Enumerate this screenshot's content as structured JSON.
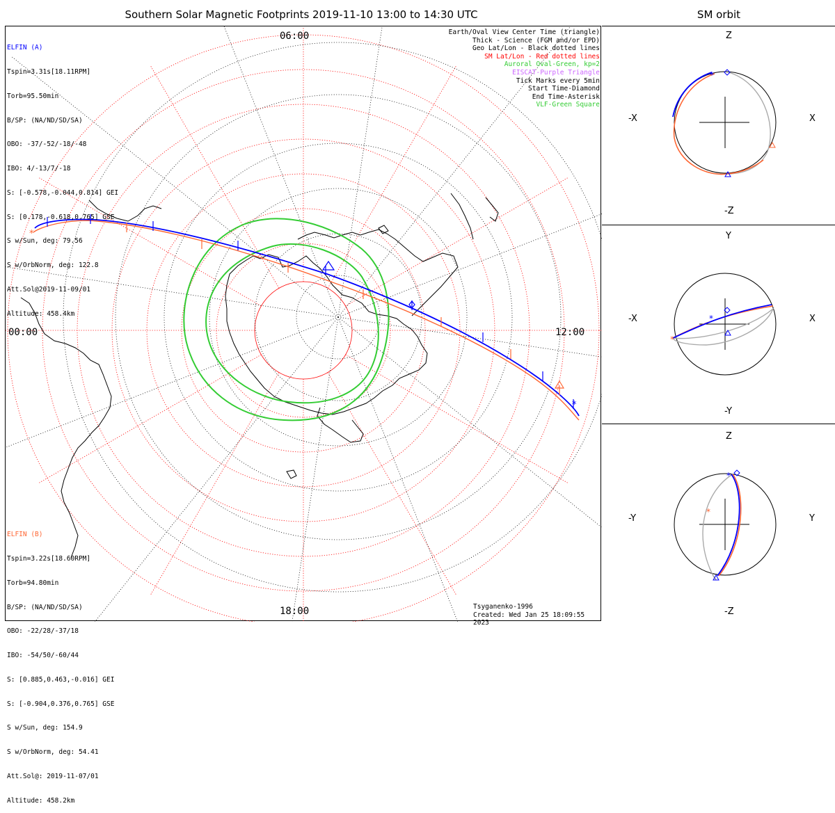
{
  "header": {
    "title": "Southern Solar Magnetic Footprints 2019-11-10 13:00 to 14:30 UTC",
    "sm_title": "SM orbit"
  },
  "mlt_labels": {
    "top": "06:00",
    "left": "00:00",
    "right": "12:00",
    "bottom": "18:00"
  },
  "elfin_a": {
    "color": "#0000ff",
    "lines": [
      "ELFIN (A)",
      "Tspin=3.31s[18.11RPM]",
      "Torb=95.50min",
      "B/SP: (NA/ND/SD/SA)",
      "OBO: -37/-52/-18/-48",
      "IBO: 4/-13/7/-18",
      "S: [-0.578,-0.044,0.814] GEI",
      "S: [0.178,-0.618,0.765] GSE",
      "S w/Sun, deg: 79.56",
      "S w/OrbNorm, deg: 122.8",
      "Att.Sol@2019-11-09/01",
      "Altitude: 458.4km"
    ]
  },
  "elfin_b": {
    "color": "#ff6633",
    "lines": [
      "ELFIN (B)",
      "Tspin=3.22s[18.60RPM]",
      "Torb=94.80min",
      "B/SP: (NA/ND/SD/SA)",
      "OBO: -22/28/-37/18",
      "IBO: -54/50/-60/44",
      "S: [0.885,0.463,-0.016] GEI",
      "S: [-0.904,0.376,0.765] GSE",
      "S w/Sun, deg: 154.9",
      "S w/OrbNorm, deg: 54.41",
      "Att.Sol@: 2019-11-07/01",
      "Altitude: 458.2km"
    ]
  },
  "legend": [
    {
      "text": "Earth/Oval View Center Time (triangle)",
      "color": "#000000"
    },
    {
      "text": "Thick - Science (FGM and/or EPD)",
      "color": "#000000"
    },
    {
      "text": "Geo Lat/Lon - Black dotted lines",
      "color": "#000000"
    },
    {
      "text": "SM Lat/Lon - Red dotted lines",
      "color": "#ff0000"
    },
    {
      "text": "Auroral Oval-Green, kp=2",
      "color": "#33cc33"
    },
    {
      "text": "EISCAT-Purple Triangle",
      "color": "#cc66ff"
    },
    {
      "text": "Tick Marks every 5min",
      "color": "#000000"
    },
    {
      "text": "Start Time-Diamond",
      "color": "#000000"
    },
    {
      "text": "End Time-Asterisk",
      "color": "#000000"
    },
    {
      "text": "VLF-Green Square",
      "color": "#33cc33"
    }
  ],
  "credit": {
    "line1": "Tsyganenko-1996",
    "line2": "Created: Wed Jan 25 18:09:55 2023"
  },
  "orbit_panels": [
    {
      "left": "-X",
      "right": "X",
      "top": "Z",
      "bottom": "-Z"
    },
    {
      "left": "-X",
      "right": "X",
      "top": "Y",
      "bottom": "-Y"
    },
    {
      "left": "-Y",
      "right": "Y",
      "top": "Z",
      "bottom": "-Z"
    }
  ],
  "colors": {
    "probe_a": "#0000ff",
    "probe_b": "#ff6633",
    "sm_grid": "#ff0000",
    "oval": "#33cc33",
    "orbit_ref": "#aaaaaa"
  }
}
